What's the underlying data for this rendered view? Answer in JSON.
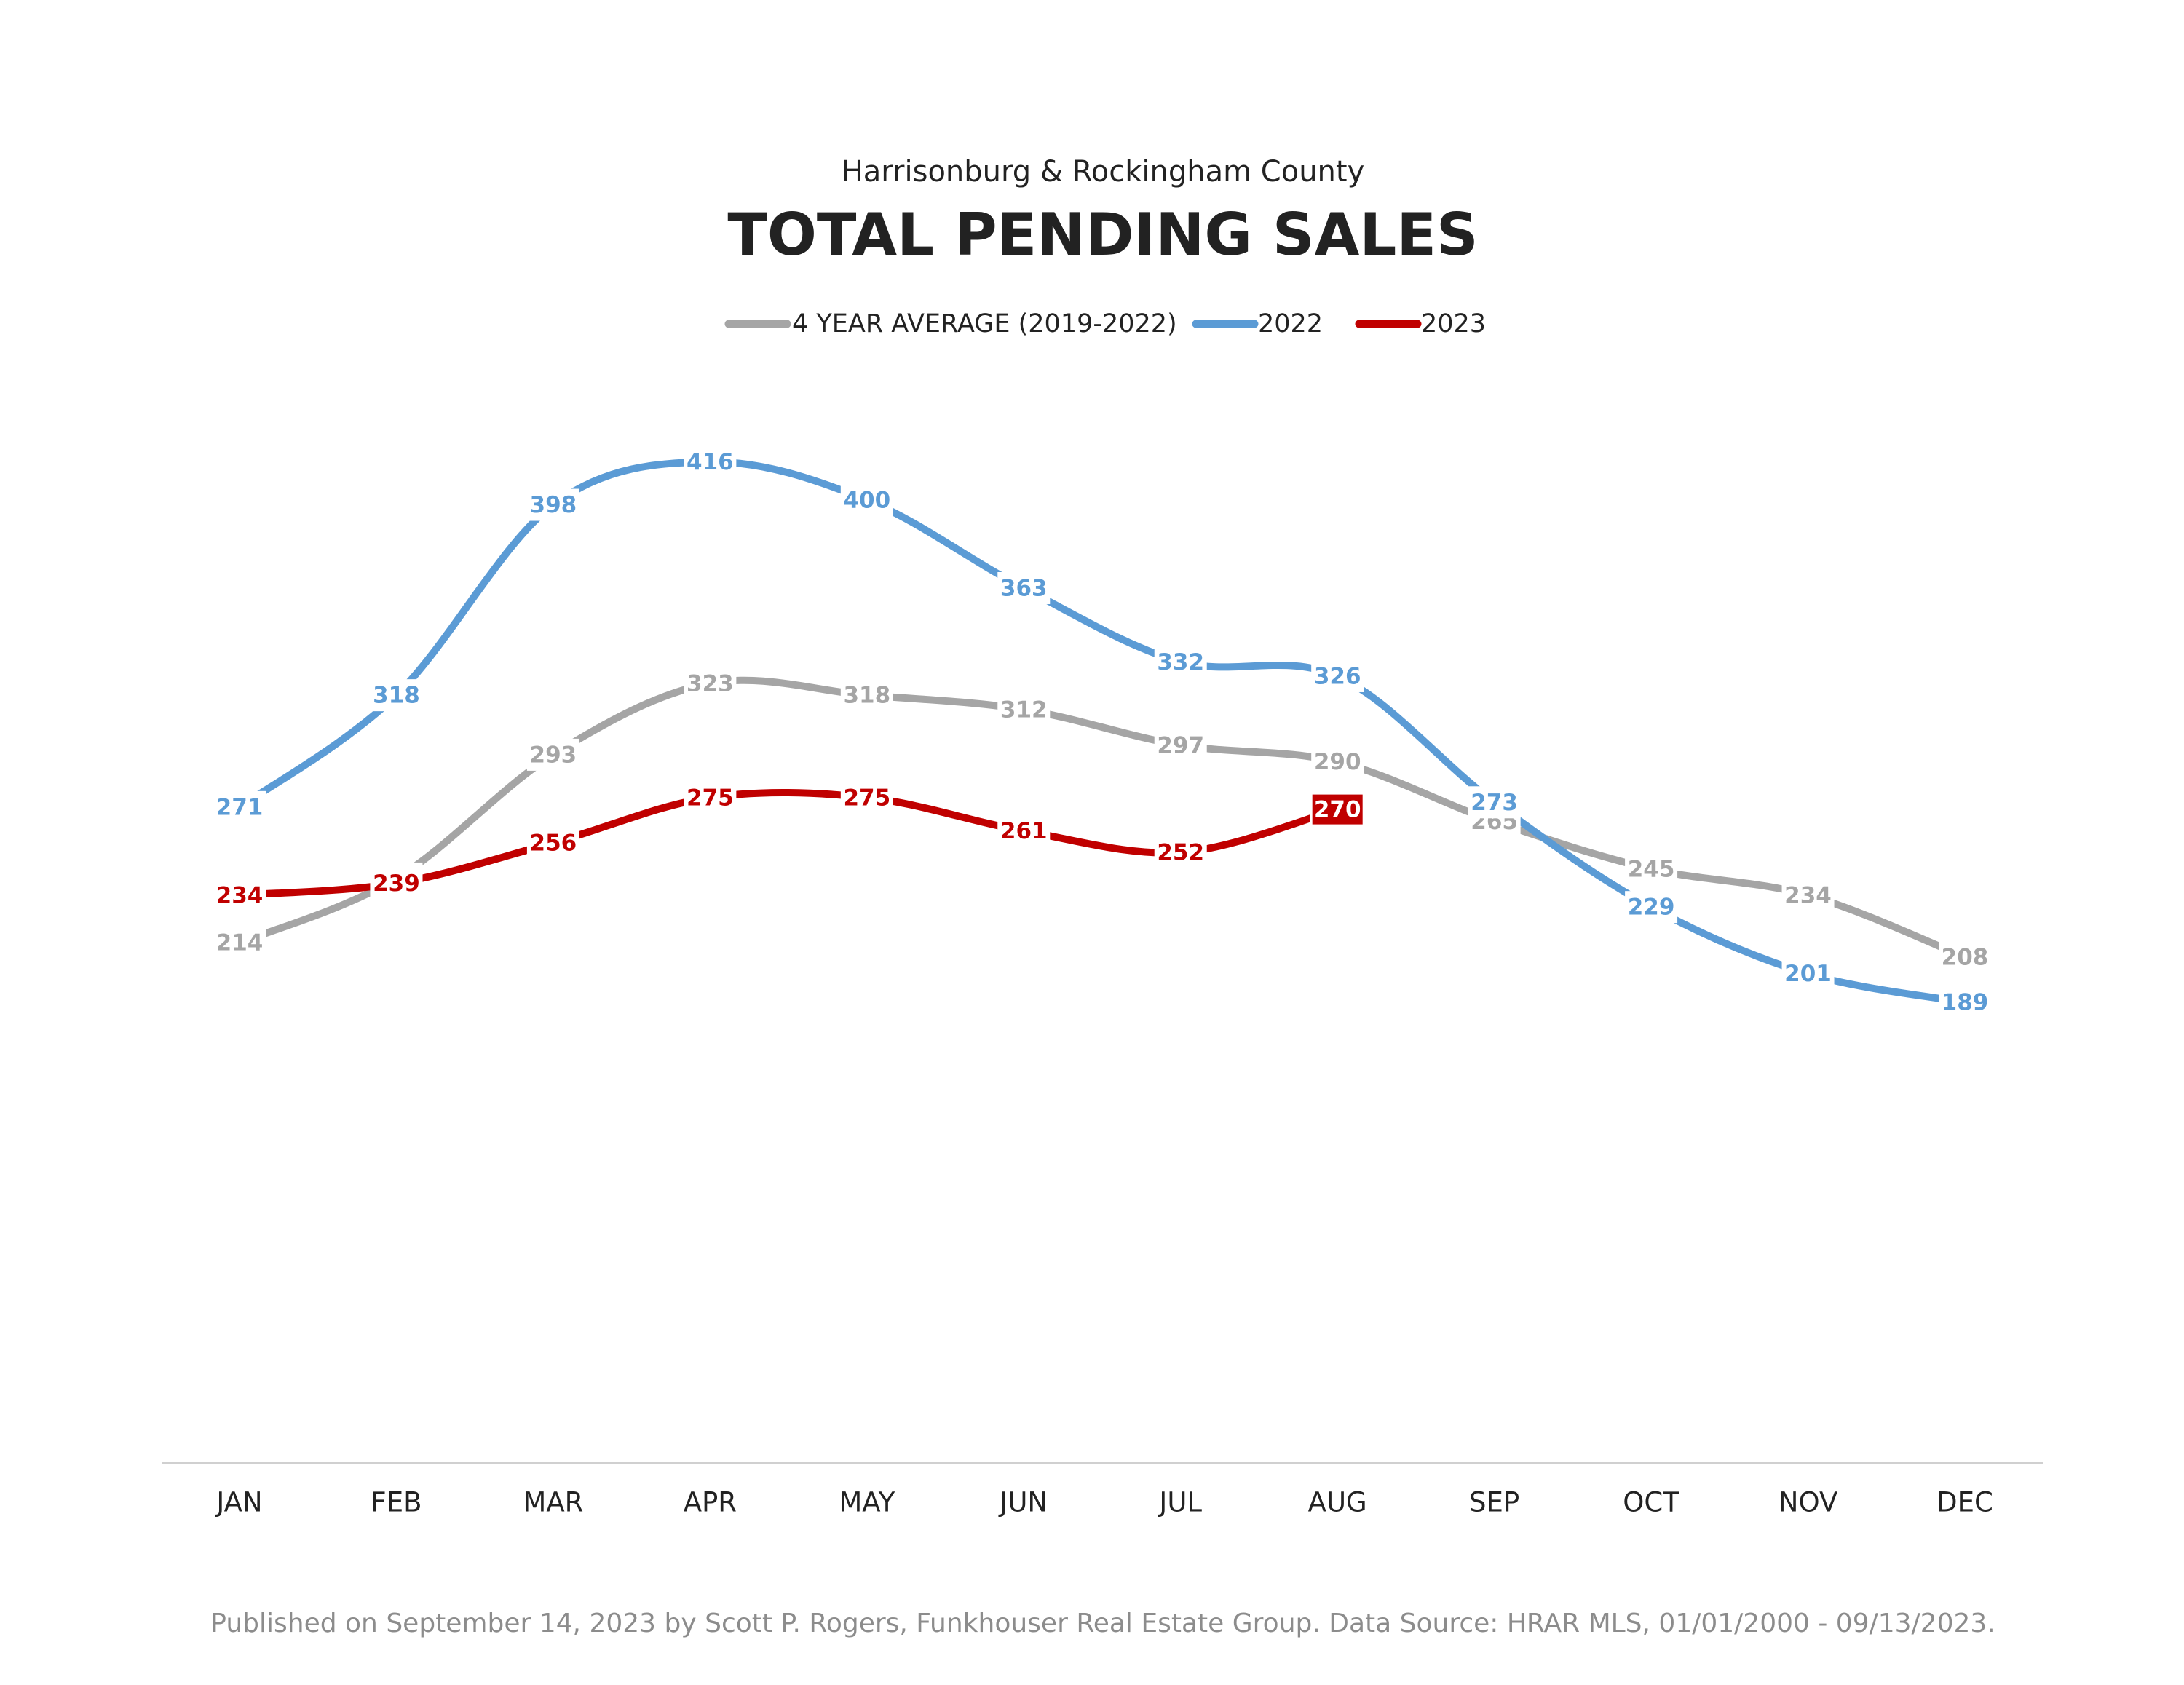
{
  "chart_data": {
    "type": "line",
    "subtitle": "Harrisonburg & Rockingham County",
    "title": "TOTAL PENDING SALES",
    "footer": "Published on September 14, 2023 by Scott P. Rogers, Funkhouser Real Estate Group. Data Source: HRAR MLS, 01/01/2000 - 09/13/2023.",
    "categories": [
      "JAN",
      "FEB",
      "MAR",
      "APR",
      "MAY",
      "JUN",
      "JUL",
      "AUG",
      "SEP",
      "OCT",
      "NOV",
      "DEC"
    ],
    "series": [
      {
        "name": "4 YEAR AVERAGE (2019-2022)",
        "color": "#a5a5a5",
        "values": [
          214,
          241,
          293,
          323,
          318,
          312,
          297,
          290,
          265,
          245,
          234,
          208
        ]
      },
      {
        "name": "2022",
        "color": "#5b9bd5",
        "values": [
          271,
          318,
          398,
          416,
          400,
          363,
          332,
          326,
          273,
          229,
          201,
          189
        ]
      },
      {
        "name": "2023",
        "color": "#c00000",
        "values": [
          234,
          239,
          256,
          275,
          275,
          261,
          252,
          270,
          null,
          null,
          null,
          null
        ]
      }
    ],
    "ylim": [
      0,
      500
    ],
    "legend": "top"
  }
}
